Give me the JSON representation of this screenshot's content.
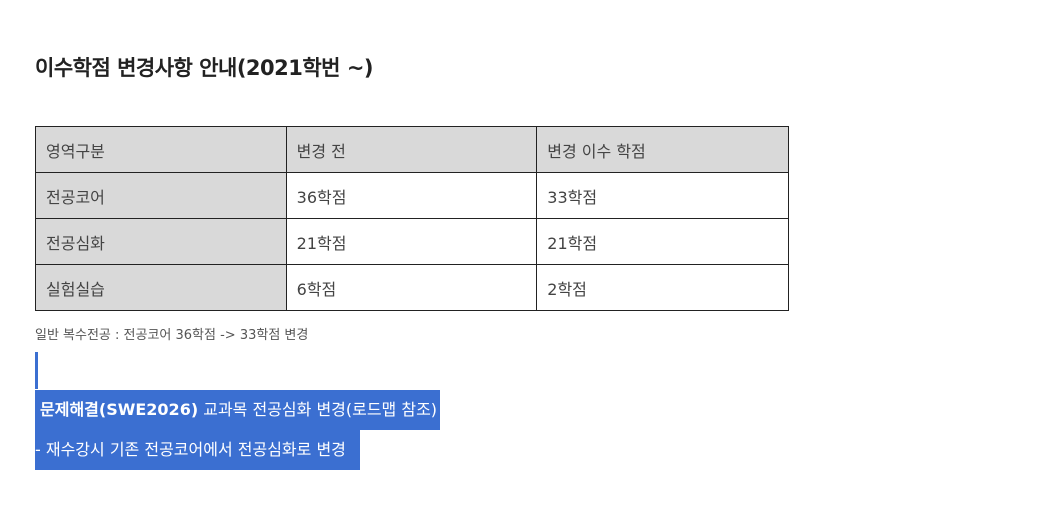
{
  "title": "이수학점 변경사항 안내(2021학번 ~)",
  "table": {
    "headers": [
      "영역구분",
      "변경 전",
      "변경 이수 학점"
    ],
    "rows": [
      [
        "전공코어",
        "36학점",
        "33학점"
      ],
      [
        "전공심화",
        "21학점",
        "21학점"
      ],
      [
        "실험실습",
        "6학점",
        "2학점"
      ]
    ]
  },
  "note": "일반 복수전공 : 전공코어 36학점  -> 33학점 변경",
  "highlight": {
    "line1_strong": "문제해결(SWE2026)",
    "line1_rest": " 교과목 전공심화 변경(로드맵 참조)",
    "line2": "- 재수강시 기존 전공코어에서 전공심화로 변경"
  },
  "colors": {
    "header_bg": "#d9d9d9",
    "highlight_bg": "#3b6fd1",
    "highlight_text": "#ffffff"
  }
}
